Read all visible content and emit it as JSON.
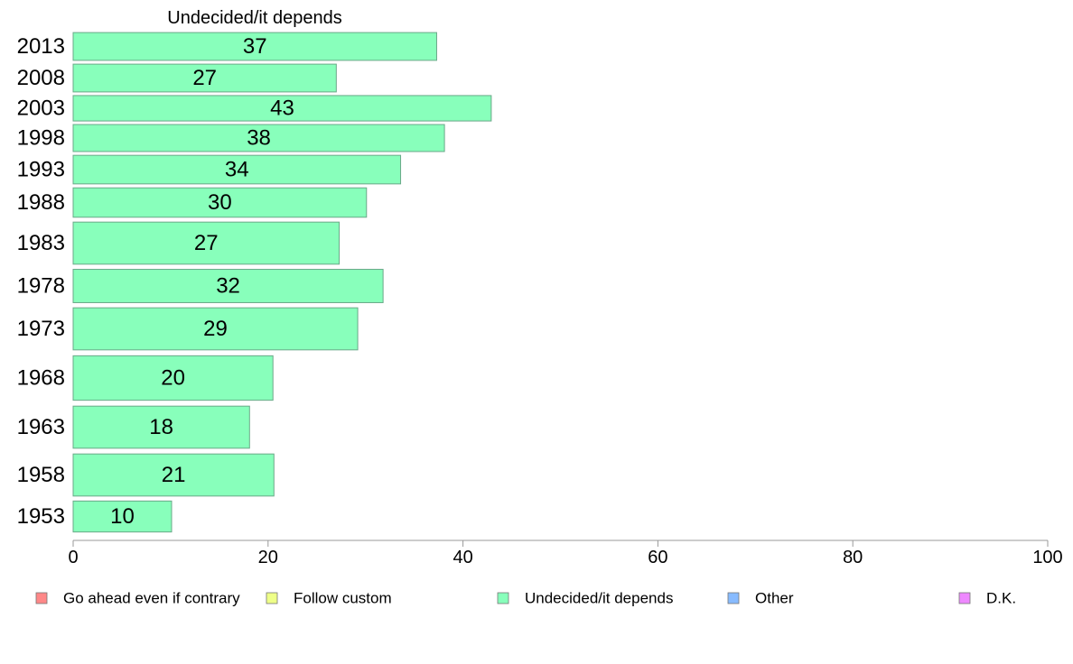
{
  "chart_data": {
    "type": "bar",
    "orientation": "horizontal",
    "title": "Undecided/it depends",
    "categories": [
      "2013",
      "2008",
      "2003",
      "1998",
      "1993",
      "1988",
      "1983",
      "1978",
      "1973",
      "1968",
      "1963",
      "1958",
      "1953"
    ],
    "series": [
      {
        "name": "Undecided/it depends",
        "values": [
          37.3,
          27.0,
          42.9,
          38.1,
          33.6,
          30.1,
          27.3,
          31.8,
          29.2,
          20.5,
          18.1,
          20.6,
          10.1
        ],
        "labels": [
          "37",
          "27",
          "43",
          "38",
          "34",
          "30",
          "27",
          "32",
          "29",
          "20",
          "18",
          "21",
          "10"
        ],
        "color": "#88ffbb"
      }
    ],
    "xlim": [
      0,
      100
    ],
    "xticks": [
      "0",
      "20",
      "40",
      "60",
      "80",
      "100"
    ],
    "grid": false,
    "legend_position": "bottom",
    "legend": [
      {
        "label": "Go ahead even if contrary",
        "color": "#ff8888"
      },
      {
        "label": "Follow custom",
        "color": "#eeff88"
      },
      {
        "label": "Undecided/it depends",
        "color": "#88ffbb"
      },
      {
        "label": "Other",
        "color": "#88bbff"
      },
      {
        "label": "D.K.",
        "color": "#ee88ff"
      }
    ]
  }
}
